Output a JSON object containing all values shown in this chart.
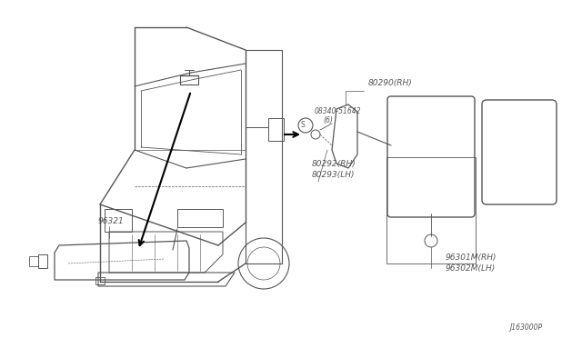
{
  "bg_color": "#ffffff",
  "line_color": "#555555",
  "text_color": "#555555",
  "label_texts": {
    "96321": "96321",
    "80290_RH": "80290(RH)",
    "screw_label": "08340-51642",
    "screw_sub": "(6)",
    "80292_RH": "80292(RH)",
    "80293_LH": "80293(LH)",
    "96301M_RH": "96301M(RH)",
    "96302M_LH": "96302M(LH)",
    "part_num_bottom": "J163000P"
  },
  "font_size_labels": 6.5,
  "font_size_small": 5.5
}
